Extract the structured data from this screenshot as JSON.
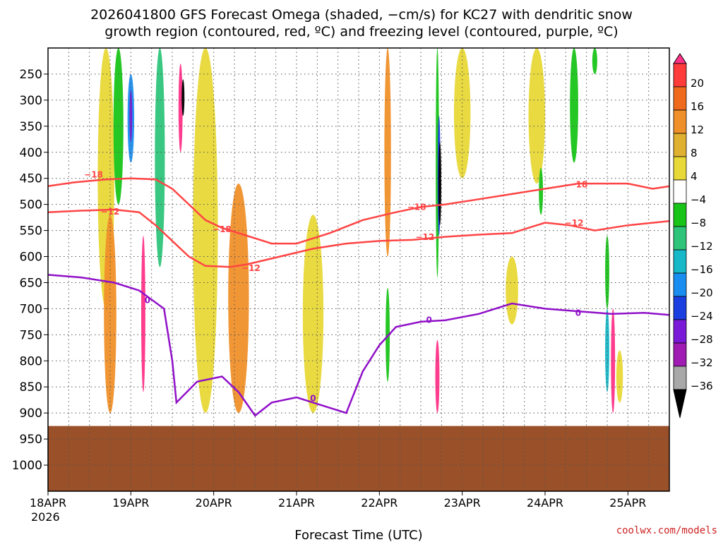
{
  "title_line1": "2026041800 GFS Forecast Omega (shaded, −cm/s) for KC27 with dendritic snow",
  "title_line2": "growth region (contoured, red, ºC) and freezing level (contoured, purple, ºC)",
  "credit": "coolwx.com/models",
  "chart_data": {
    "type": "heatmap",
    "xlabel": "Forecast Time (UTC)",
    "ylabel": "",
    "x_ticks": [
      "18APR",
      "19APR",
      "20APR",
      "21APR",
      "22APR",
      "23APR",
      "24APR",
      "25APR"
    ],
    "x_year_label": "2026",
    "x_range_days": [
      0,
      7.5
    ],
    "y_ticks": [
      250,
      300,
      350,
      400,
      450,
      500,
      550,
      600,
      650,
      700,
      750,
      800,
      850,
      900,
      950,
      1000
    ],
    "y_range_hpa": [
      1050,
      200
    ],
    "surface_pressure_hpa": 925,
    "colorbar": {
      "labels": [
        "20",
        "16",
        "12",
        "8",
        "4",
        "−4",
        "−8",
        "−12",
        "−16",
        "−20",
        "−24",
        "−28",
        "−32",
        "−36"
      ],
      "colors": [
        "#ff3388",
        "#ff3b3b",
        "#f06a1e",
        "#f0902a",
        "#e0b030",
        "#e8d838",
        "#ffffff",
        "#19c419",
        "#2ec47a",
        "#17b8c8",
        "#1a8ef0",
        "#1a3ee0",
        "#7a1ad8",
        "#a01ab4",
        "#a8a8a8",
        "#000000"
      ]
    },
    "omega_features": [
      {
        "name": "yellow",
        "t": 0.7,
        "p0": 200,
        "p1": 700,
        "w": 0.2,
        "color": "#e8d838"
      },
      {
        "name": "orange",
        "t": 0.75,
        "p0": 520,
        "p1": 900,
        "w": 0.15,
        "color": "#f0902a"
      },
      {
        "name": "green",
        "t": 0.85,
        "p0": 200,
        "p1": 500,
        "w": 0.12,
        "color": "#19c419"
      },
      {
        "name": "blue",
        "t": 1.0,
        "p0": 250,
        "p1": 420,
        "w": 0.08,
        "color": "#1a8ef0"
      },
      {
        "name": "purple",
        "t": 1.0,
        "p0": 280,
        "p1": 380,
        "w": 0.03,
        "color": "#7a1ad8"
      },
      {
        "name": "pink",
        "t": 1.15,
        "p0": 560,
        "p1": 860,
        "w": 0.05,
        "color": "#ff3388"
      },
      {
        "name": "teal",
        "t": 1.35,
        "p0": 200,
        "p1": 620,
        "w": 0.12,
        "color": "#2ec47a"
      },
      {
        "name": "pink",
        "t": 1.6,
        "p0": 230,
        "p1": 400,
        "w": 0.05,
        "color": "#ff3388"
      },
      {
        "name": "black",
        "t": 1.63,
        "p0": 260,
        "p1": 330,
        "w": 0.025,
        "color": "#000000"
      },
      {
        "name": "yellow",
        "t": 1.9,
        "p0": 200,
        "p1": 900,
        "w": 0.3,
        "color": "#e8d838"
      },
      {
        "name": "orange",
        "t": 2.3,
        "p0": 460,
        "p1": 900,
        "w": 0.25,
        "color": "#f0902a"
      },
      {
        "name": "yellow",
        "t": 3.2,
        "p0": 520,
        "p1": 900,
        "w": 0.25,
        "color": "#e8d838"
      },
      {
        "name": "orange",
        "t": 4.1,
        "p0": 200,
        "p1": 600,
        "w": 0.08,
        "color": "#f0902a"
      },
      {
        "name": "green",
        "t": 4.1,
        "p0": 660,
        "p1": 840,
        "w": 0.05,
        "color": "#19c419"
      },
      {
        "name": "green",
        "t": 4.7,
        "p0": 200,
        "p1": 640,
        "w": 0.04,
        "color": "#19c419"
      },
      {
        "name": "blue",
        "t": 4.72,
        "p0": 330,
        "p1": 560,
        "w": 0.03,
        "color": "#1a3ee0"
      },
      {
        "name": "black",
        "t": 4.73,
        "p0": 380,
        "p1": 540,
        "w": 0.015,
        "color": "#000000"
      },
      {
        "name": "pink",
        "t": 4.7,
        "p0": 760,
        "p1": 900,
        "w": 0.05,
        "color": "#ff3388"
      },
      {
        "name": "yellow",
        "t": 5.0,
        "p0": 200,
        "p1": 450,
        "w": 0.2,
        "color": "#e8d838"
      },
      {
        "name": "yellow",
        "t": 5.6,
        "p0": 600,
        "p1": 730,
        "w": 0.15,
        "color": "#e8d838"
      },
      {
        "name": "yellow",
        "t": 5.9,
        "p0": 200,
        "p1": 460,
        "w": 0.2,
        "color": "#e8d838"
      },
      {
        "name": "green",
        "t": 6.35,
        "p0": 200,
        "p1": 420,
        "w": 0.1,
        "color": "#19c419"
      },
      {
        "name": "green",
        "t": 6.6,
        "p0": 200,
        "p1": 250,
        "w": 0.06,
        "color": "#19c419"
      },
      {
        "name": "green",
        "t": 5.95,
        "p0": 430,
        "p1": 520,
        "w": 0.05,
        "color": "#19c419"
      },
      {
        "name": "green",
        "t": 6.75,
        "p0": 560,
        "p1": 700,
        "w": 0.05,
        "color": "#19c419"
      },
      {
        "name": "teal",
        "t": 6.75,
        "p0": 700,
        "p1": 860,
        "w": 0.05,
        "color": "#17b8c8"
      },
      {
        "name": "pink",
        "t": 6.82,
        "p0": 700,
        "p1": 900,
        "w": 0.05,
        "color": "#ff3388"
      },
      {
        "name": "yellow",
        "t": 6.9,
        "p0": 780,
        "p1": 880,
        "w": 0.08,
        "color": "#e8d838"
      }
    ],
    "contours": [
      {
        "label": "−18",
        "color": "#ff4444",
        "points": [
          [
            0,
            465
          ],
          [
            0.3,
            458
          ],
          [
            0.7,
            452
          ],
          [
            1.0,
            450
          ],
          [
            1.3,
            452
          ],
          [
            1.5,
            470
          ],
          [
            1.7,
            500
          ],
          [
            1.9,
            530
          ],
          [
            2.1,
            545
          ],
          [
            2.4,
            560
          ],
          [
            2.7,
            575
          ],
          [
            3.0,
            575
          ],
          [
            3.4,
            555
          ],
          [
            3.8,
            530
          ],
          [
            4.2,
            515
          ],
          [
            4.5,
            505
          ],
          [
            4.8,
            500
          ],
          [
            5.2,
            490
          ],
          [
            5.6,
            480
          ],
          [
            6.0,
            470
          ],
          [
            6.4,
            460
          ],
          [
            7.0,
            460
          ],
          [
            7.3,
            470
          ],
          [
            7.5,
            465
          ]
        ]
      },
      {
        "label": "−12",
        "color": "#ff4444",
        "points": [
          [
            0,
            515
          ],
          [
            0.4,
            512
          ],
          [
            0.8,
            510
          ],
          [
            1.1,
            515
          ],
          [
            1.3,
            540
          ],
          [
            1.5,
            570
          ],
          [
            1.7,
            600
          ],
          [
            1.9,
            618
          ],
          [
            2.2,
            620
          ],
          [
            2.4,
            615
          ],
          [
            2.8,
            600
          ],
          [
            3.2,
            585
          ],
          [
            3.6,
            575
          ],
          [
            4.0,
            570
          ],
          [
            4.4,
            568
          ],
          [
            4.8,
            562
          ],
          [
            5.2,
            558
          ],
          [
            5.6,
            555
          ],
          [
            6.0,
            535
          ],
          [
            6.3,
            540
          ],
          [
            6.6,
            550
          ],
          [
            7.0,
            540
          ],
          [
            7.5,
            532
          ]
        ]
      },
      {
        "label": "0",
        "color": "#9010c8",
        "points": [
          [
            0,
            635
          ],
          [
            0.4,
            640
          ],
          [
            0.8,
            650
          ],
          [
            1.1,
            665
          ],
          [
            1.4,
            700
          ],
          [
            1.5,
            800
          ],
          [
            1.55,
            880
          ],
          [
            1.8,
            840
          ],
          [
            2.1,
            830
          ],
          [
            2.3,
            860
          ],
          [
            2.5,
            905
          ],
          [
            2.7,
            880
          ],
          [
            3.0,
            870
          ],
          [
            3.4,
            890
          ],
          [
            3.6,
            900
          ],
          [
            3.8,
            820
          ],
          [
            4.0,
            770
          ],
          [
            4.2,
            735
          ],
          [
            4.5,
            725
          ],
          [
            4.8,
            722
          ],
          [
            5.2,
            710
          ],
          [
            5.6,
            690
          ],
          [
            6.0,
            700
          ],
          [
            6.4,
            705
          ],
          [
            6.8,
            710
          ],
          [
            7.2,
            708
          ],
          [
            7.5,
            712
          ]
        ]
      }
    ],
    "contour_labels": [
      {
        "text": "−18",
        "t": 0.55,
        "p": 443
      },
      {
        "text": "−12",
        "t": 0.75,
        "p": 514
      },
      {
        "text": "0",
        "t": 1.2,
        "p": 684
      },
      {
        "text": "−18",
        "t": 2.1,
        "p": 548
      },
      {
        "text": "−12",
        "t": 2.45,
        "p": 622
      },
      {
        "text": "0",
        "t": 3.2,
        "p": 872
      },
      {
        "text": "−18",
        "t": 4.45,
        "p": 505
      },
      {
        "text": "−12",
        "t": 4.55,
        "p": 563
      },
      {
        "text": "0",
        "t": 4.6,
        "p": 722
      },
      {
        "text": "−12",
        "t": 6.35,
        "p": 536
      },
      {
        "text": "−18",
        "t": 6.4,
        "p": 462
      },
      {
        "text": "0",
        "t": 6.4,
        "p": 708
      }
    ]
  }
}
